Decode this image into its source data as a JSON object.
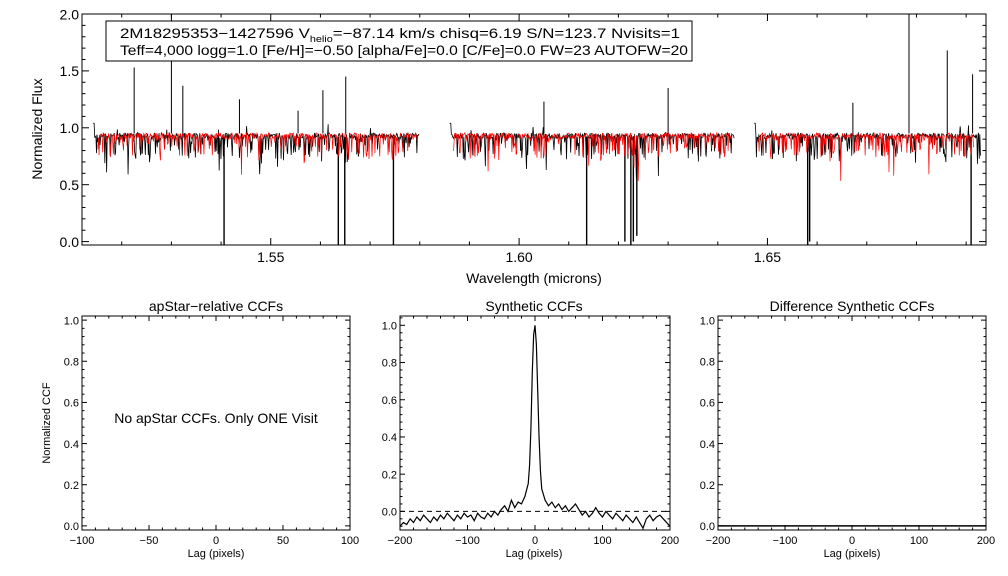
{
  "colors": {
    "observed": "#000000",
    "model": "#ff0000",
    "axis": "#000000"
  },
  "header": {
    "line1": {
      "star": "2M18295353−1427596",
      "v_prefix": "V",
      "v_sub": "helio",
      "v_rest": "=−87.14 km/s  chisq=6.19  S/N=123.7  Nvisits=1"
    },
    "line2": "Teff=4,000 logg=1.0 [Fe/H]=−0.50 [alpha/Fe]=0.0 [C/Fe]=0.0 FW=23 AUTOFW=20"
  },
  "panel_note": "No apStar CCFs.  Only ONE Visit",
  "chart_data": [
    {
      "id": "spectrum",
      "type": "line",
      "title": "",
      "xlabel": "Wavelength (microns)",
      "ylabel": "Normalized Flux",
      "xlim": [
        1.512,
        1.694
      ],
      "ylim": [
        -0.03,
        2.0
      ],
      "xticks": [
        1.55,
        1.6,
        1.65
      ],
      "xtick_labels": [
        "1.55",
        "1.60",
        "1.65"
      ],
      "yticks": [
        0.0,
        0.5,
        1.0,
        1.5,
        2.0
      ],
      "ytick_labels": [
        "0.0",
        "0.5",
        "1.0",
        "1.5",
        "2.0"
      ],
      "series": [
        {
          "name": "observed spectrum",
          "color": "#000000",
          "continuum": 0.93,
          "segments": [
            [
              1.5142,
              1.5799
            ],
            [
              1.586,
              1.6433
            ],
            [
              1.6473,
              1.693
            ]
          ]
        },
        {
          "name": "synthetic model",
          "color": "#ff0000",
          "continuum": 0.93,
          "segments": [
            [
              1.5152,
              1.5795
            ],
            [
              1.5868,
              1.6428
            ],
            [
              1.6482,
              1.6915
            ]
          ]
        }
      ],
      "deep_lines": [
        {
          "x": 1.5406,
          "y": -0.05
        },
        {
          "x": 1.5636,
          "y": -0.05
        },
        {
          "x": 1.5649,
          "y": -0.05
        },
        {
          "x": 1.5747,
          "y": -0.05
        },
        {
          "x": 1.6136,
          "y": -0.05
        },
        {
          "x": 1.6213,
          "y": 0.0
        },
        {
          "x": 1.6225,
          "y": -0.05
        },
        {
          "x": 1.623,
          "y": 0.0
        },
        {
          "x": 1.6237,
          "y": 0.05
        },
        {
          "x": 1.6581,
          "y": -0.05
        },
        {
          "x": 1.6585,
          "y": 0.0
        },
        {
          "x": 1.691,
          "y": -0.05
        }
      ],
      "spikes": [
        {
          "x": 1.5225,
          "y": 1.53
        },
        {
          "x": 1.53,
          "y": 2.0
        },
        {
          "x": 1.5323,
          "y": 1.37
        },
        {
          "x": 1.5437,
          "y": 1.25
        },
        {
          "x": 1.5555,
          "y": 1.15
        },
        {
          "x": 1.5605,
          "y": 1.33
        },
        {
          "x": 1.5651,
          "y": 1.45
        },
        {
          "x": 1.605,
          "y": 1.23
        },
        {
          "x": 1.63,
          "y": 1.35
        },
        {
          "x": 1.6672,
          "y": 1.22
        },
        {
          "x": 1.6785,
          "y": 2.05
        },
        {
          "x": 1.6862,
          "y": 1.68
        },
        {
          "x": 1.6913,
          "y": 1.47
        }
      ]
    },
    {
      "id": "apstar_ccf",
      "type": "line",
      "title": "apStar−relative CCFs",
      "xlabel": "Lag (pixels)",
      "ylabel": "Normalized CCF",
      "xlim": [
        -100,
        100
      ],
      "ylim": [
        -0.02,
        1.02
      ],
      "xticks": [
        -100,
        -50,
        0,
        50,
        100
      ],
      "xtick_labels": [
        "−100",
        "−50",
        "0",
        "50",
        "100"
      ],
      "yticks": [
        0.0,
        0.2,
        0.4,
        0.6,
        0.8,
        1.0
      ],
      "ytick_labels": [
        "0.0",
        "0.2",
        "0.4",
        "0.6",
        "0.8",
        "1.0"
      ],
      "series": []
    },
    {
      "id": "synthetic_ccf",
      "type": "line",
      "title": "Synthetic CCFs",
      "xlabel": "Lag (pixels)",
      "ylabel": "",
      "xlim": [
        -200,
        200
      ],
      "ylim": [
        -0.1,
        1.05
      ],
      "xticks": [
        -200,
        -100,
        0,
        100,
        200
      ],
      "xtick_labels": [
        "−200",
        "−100",
        "0",
        "100",
        "200"
      ],
      "yticks": [
        0.0,
        0.2,
        0.4,
        0.6,
        0.8,
        1.0
      ],
      "ytick_labels": [
        "0.0",
        "0.2",
        "0.4",
        "0.6",
        "0.8",
        "1.0"
      ],
      "zero_line": true,
      "series": [
        {
          "name": "CCF",
          "color": "#000000",
          "x": [
            -200,
            -195,
            -190,
            -185,
            -180,
            -175,
            -170,
            -165,
            -160,
            -155,
            -150,
            -145,
            -140,
            -135,
            -130,
            -125,
            -120,
            -115,
            -110,
            -105,
            -100,
            -95,
            -90,
            -85,
            -80,
            -75,
            -70,
            -65,
            -60,
            -55,
            -50,
            -45,
            -40,
            -35,
            -30,
            -25,
            -20,
            -15,
            -10,
            -8,
            -6,
            -4,
            -2,
            0,
            2,
            4,
            6,
            8,
            10,
            15,
            20,
            25,
            30,
            35,
            40,
            45,
            50,
            55,
            60,
            65,
            70,
            75,
            80,
            85,
            90,
            95,
            100,
            105,
            110,
            115,
            120,
            125,
            130,
            135,
            140,
            145,
            150,
            155,
            160,
            165,
            170,
            175,
            180,
            185,
            190,
            195,
            200
          ],
          "y": [
            -0.08,
            -0.06,
            -0.07,
            -0.04,
            -0.06,
            -0.03,
            -0.05,
            -0.02,
            -0.04,
            -0.06,
            -0.03,
            -0.05,
            -0.02,
            -0.04,
            -0.01,
            -0.03,
            -0.05,
            -0.02,
            -0.04,
            -0.01,
            -0.03,
            -0.02,
            -0.05,
            -0.01,
            -0.03,
            -0.04,
            -0.01,
            -0.03,
            0.0,
            -0.02,
            0.01,
            0.03,
            0.0,
            0.06,
            0.02,
            0.05,
            0.04,
            0.08,
            0.15,
            0.25,
            0.45,
            0.75,
            0.95,
            1.0,
            0.9,
            0.65,
            0.4,
            0.22,
            0.12,
            0.06,
            0.03,
            0.05,
            0.02,
            0.04,
            0.01,
            0.03,
            0.0,
            0.02,
            0.04,
            0.01,
            -0.02,
            0.0,
            -0.03,
            -0.01,
            0.02,
            -0.01,
            -0.03,
            0.0,
            -0.02,
            -0.04,
            -0.01,
            -0.03,
            -0.05,
            -0.02,
            -0.04,
            -0.06,
            -0.03,
            -0.06,
            -0.09,
            -0.04,
            -0.02,
            -0.05,
            -0.03,
            -0.02,
            -0.04,
            -0.06,
            -0.08
          ]
        }
      ]
    },
    {
      "id": "difference_ccf",
      "type": "line",
      "title": "Difference Synthetic CCFs",
      "xlabel": "Lag (pixels)",
      "ylabel": "",
      "xlim": [
        -200,
        200
      ],
      "ylim": [
        -0.02,
        1.02
      ],
      "xticks": [
        -200,
        -100,
        0,
        100,
        200
      ],
      "xtick_labels": [
        "−200",
        "−100",
        "0",
        "100",
        "200"
      ],
      "yticks": [
        0.0,
        0.2,
        0.4,
        0.6,
        0.8,
        1.0
      ],
      "ytick_labels": [
        "0.0",
        "0.2",
        "0.4",
        "0.6",
        "0.8",
        "1.0"
      ],
      "series": [
        {
          "name": "difference",
          "color": "#000000",
          "x": [
            -200,
            200
          ],
          "y": [
            0.0,
            0.0
          ]
        }
      ]
    }
  ]
}
